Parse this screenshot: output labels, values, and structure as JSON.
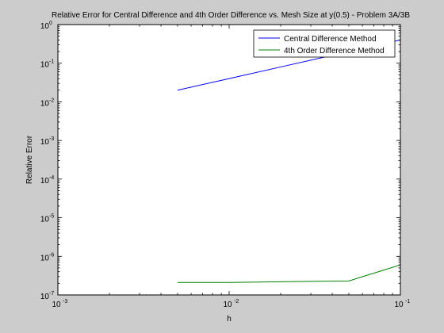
{
  "chart_data": {
    "type": "line",
    "title": "Relative Error for Central Difference and 4th Order Difference vs. Mesh Size at y(0.5) - Problem 3A/3B",
    "xlabel": "h",
    "ylabel": "Relative Error",
    "xscale": "log",
    "yscale": "log",
    "xlim": [
      0.001,
      0.1
    ],
    "ylim": [
      1e-07,
      1
    ],
    "grid": false,
    "legend_position": "top-right",
    "x_ticks": [
      {
        "value": 0.001,
        "base": "10",
        "exp": "-3"
      },
      {
        "value": 0.01,
        "base": "10",
        "exp": "-2"
      },
      {
        "value": 0.1,
        "base": "10",
        "exp": "-1"
      }
    ],
    "y_ticks": [
      {
        "value": 1,
        "base": "10",
        "exp": "0"
      },
      {
        "value": 0.1,
        "base": "10",
        "exp": "-1"
      },
      {
        "value": 0.01,
        "base": "10",
        "exp": "-2"
      },
      {
        "value": 0.001,
        "base": "10",
        "exp": "-3"
      },
      {
        "value": 0.0001,
        "base": "10",
        "exp": "-4"
      },
      {
        "value": 1e-05,
        "base": "10",
        "exp": "-5"
      },
      {
        "value": 1e-06,
        "base": "10",
        "exp": "-6"
      },
      {
        "value": 1e-07,
        "base": "10",
        "exp": "-7"
      }
    ],
    "series": [
      {
        "name": "Central Difference Method",
        "color": "#0000ff",
        "x": [
          0.005,
          0.01,
          0.02,
          0.05,
          0.1
        ],
        "y": [
          0.02,
          0.04,
          0.08,
          0.2,
          0.4
        ]
      },
      {
        "name": "4th Order Difference Method",
        "color": "#008000",
        "x": [
          0.005,
          0.01,
          0.02,
          0.05,
          0.1
        ],
        "y": [
          2.1e-07,
          2.1e-07,
          2.2e-07,
          2.3e-07,
          6e-07
        ]
      }
    ]
  }
}
